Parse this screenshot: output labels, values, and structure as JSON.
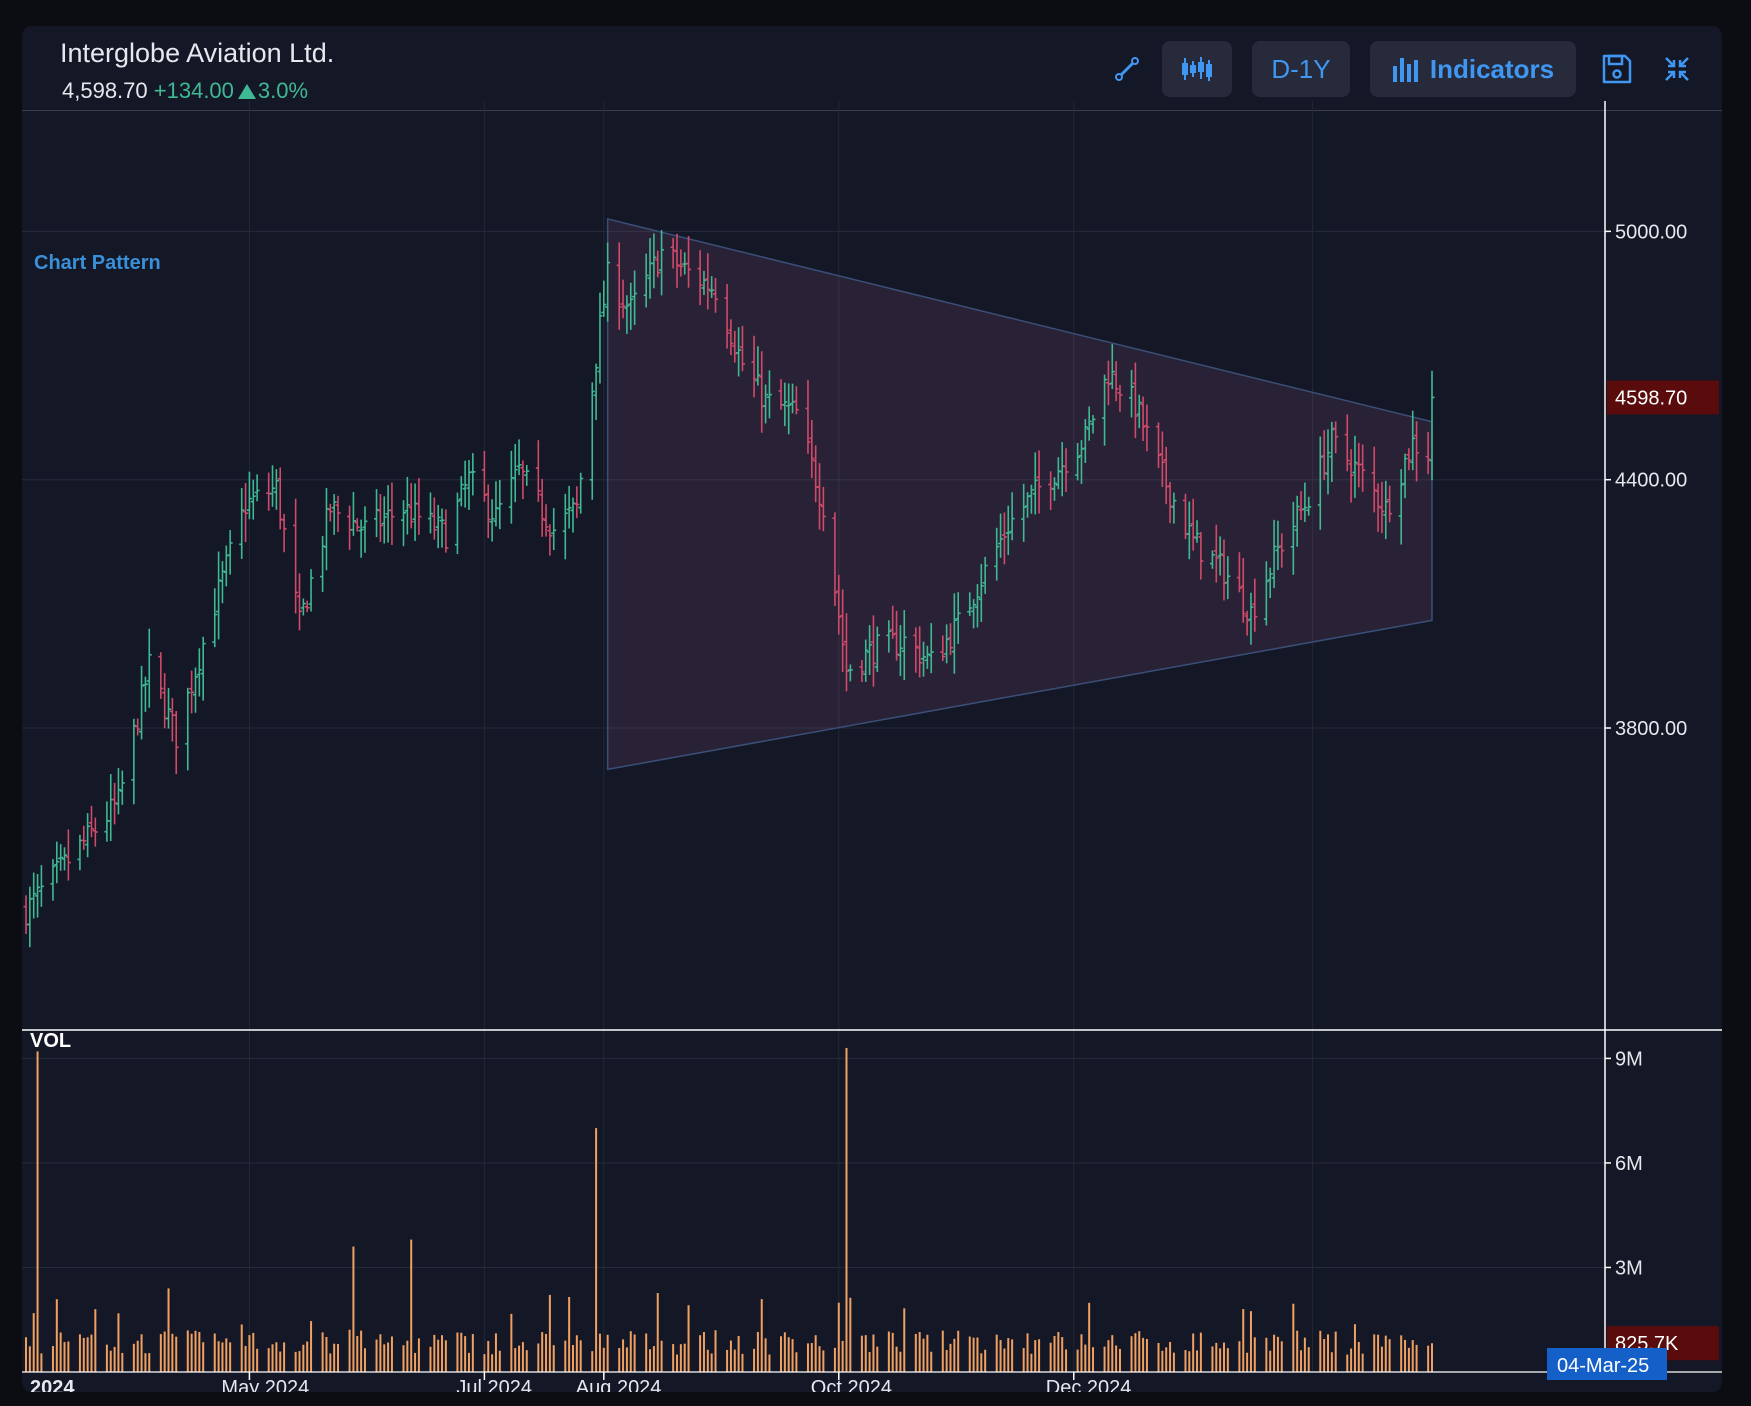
{
  "header": {
    "title": "Interglobe Aviation Ltd.",
    "price": "4,598.70",
    "change": "+134.00",
    "change_pct": "3.0%"
  },
  "toolbar": {
    "draw_icon": "trendline-draw-icon",
    "chart_type_icon": "candlestick-icon",
    "period": "D-1Y",
    "indicators_icon": "bar-chart-icon",
    "indicators_label": "Indicators",
    "save_icon": "save-icon",
    "collapse_icon": "collapse-icon",
    "accent": "#3f97f2"
  },
  "chart_data": {
    "type": "ohlc",
    "ticker_name": "Interglobe Aviation Ltd.",
    "price_axis": {
      "ticks": [
        "5000.00",
        "4400.00",
        "3800.00"
      ],
      "current": "4598.70",
      "range": [
        3080,
        5315
      ]
    },
    "volume_axis": {
      "label": "VOL",
      "ticks": [
        "9M",
        "6M",
        "3M"
      ],
      "current": "825.7K",
      "range": [
        0,
        9700000
      ]
    },
    "x_axis": {
      "labels": [
        "2024",
        "May 2024",
        "Jul 2024",
        "Aug 2024",
        "Oct 2024",
        "Dec 2024"
      ],
      "current_date": "04-Mar-25"
    },
    "annotation": "Chart Pattern",
    "pattern": {
      "kind": "symmetrical triangle",
      "upper": [
        [
          "2024-08-02",
          5030
        ],
        [
          "2025-03-04",
          4540
        ]
      ],
      "lower": [
        [
          "2024-08-02",
          3700
        ],
        [
          "2025-03-04",
          4060
        ]
      ]
    },
    "colors": {
      "up": "#3fb993",
      "down": "#d04a6a",
      "volume": "#f0a060",
      "last_badge": "#5a0c0c",
      "date_badge": "#1560c8"
    },
    "ohlc_anchor_closes": [
      [
        "2024-03-04",
        3360
      ],
      [
        "2024-03-15",
        3480
      ],
      [
        "2024-03-28",
        3620
      ],
      [
        "2024-04-05",
        3950
      ],
      [
        "2024-04-12",
        3780
      ],
      [
        "2024-04-22",
        4100
      ],
      [
        "2024-04-30",
        4340
      ],
      [
        "2024-05-08",
        4380
      ],
      [
        "2024-05-14",
        4050
      ],
      [
        "2024-05-22",
        4330
      ],
      [
        "2024-05-31",
        4280
      ],
      [
        "2024-06-10",
        4330
      ],
      [
        "2024-06-21",
        4270
      ],
      [
        "2024-06-27",
        4400
      ],
      [
        "2024-07-04",
        4310
      ],
      [
        "2024-07-10",
        4420
      ],
      [
        "2024-07-19",
        4280
      ],
      [
        "2024-07-25",
        4330
      ],
      [
        "2024-07-31",
        4770
      ],
      [
        "2024-08-02",
        4890
      ],
      [
        "2024-08-08",
        4810
      ],
      [
        "2024-08-16",
        4950
      ],
      [
        "2024-08-23",
        4900
      ],
      [
        "2024-08-30",
        4860
      ],
      [
        "2024-09-06",
        4680
      ],
      [
        "2024-09-12",
        4590
      ],
      [
        "2024-09-20",
        4560
      ],
      [
        "2024-09-27",
        4340
      ],
      [
        "2024-10-03",
        3940
      ],
      [
        "2024-10-10",
        3990
      ],
      [
        "2024-10-18",
        4010
      ],
      [
        "2024-10-25",
        3960
      ],
      [
        "2024-11-01",
        4050
      ],
      [
        "2024-11-08",
        4180
      ],
      [
        "2024-11-14",
        4290
      ],
      [
        "2024-11-22",
        4380
      ],
      [
        "2024-11-29",
        4450
      ],
      [
        "2024-12-04",
        4500
      ],
      [
        "2024-12-10",
        4660
      ],
      [
        "2024-12-17",
        4580
      ],
      [
        "2024-12-24",
        4410
      ],
      [
        "2025-01-01",
        4250
      ],
      [
        "2025-01-09",
        4180
      ],
      [
        "2025-01-16",
        4080
      ],
      [
        "2025-01-23",
        4230
      ],
      [
        "2025-01-30",
        4340
      ],
      [
        "2025-02-06",
        4490
      ],
      [
        "2025-02-13",
        4420
      ],
      [
        "2025-02-20",
        4330
      ],
      [
        "2025-02-27",
        4490
      ],
      [
        "2025-03-03",
        4465
      ],
      [
        "2025-03-04",
        4598.7
      ]
    ],
    "volume_spikes": [
      [
        "2024-03-07",
        9200000
      ],
      [
        "2024-04-10",
        2400000
      ],
      [
        "2024-05-28",
        3600000
      ],
      [
        "2024-06-12",
        3800000
      ],
      [
        "2024-07-30",
        7000000
      ],
      [
        "2024-10-03",
        9300000
      ],
      [
        "2025-03-04",
        825700
      ]
    ]
  }
}
